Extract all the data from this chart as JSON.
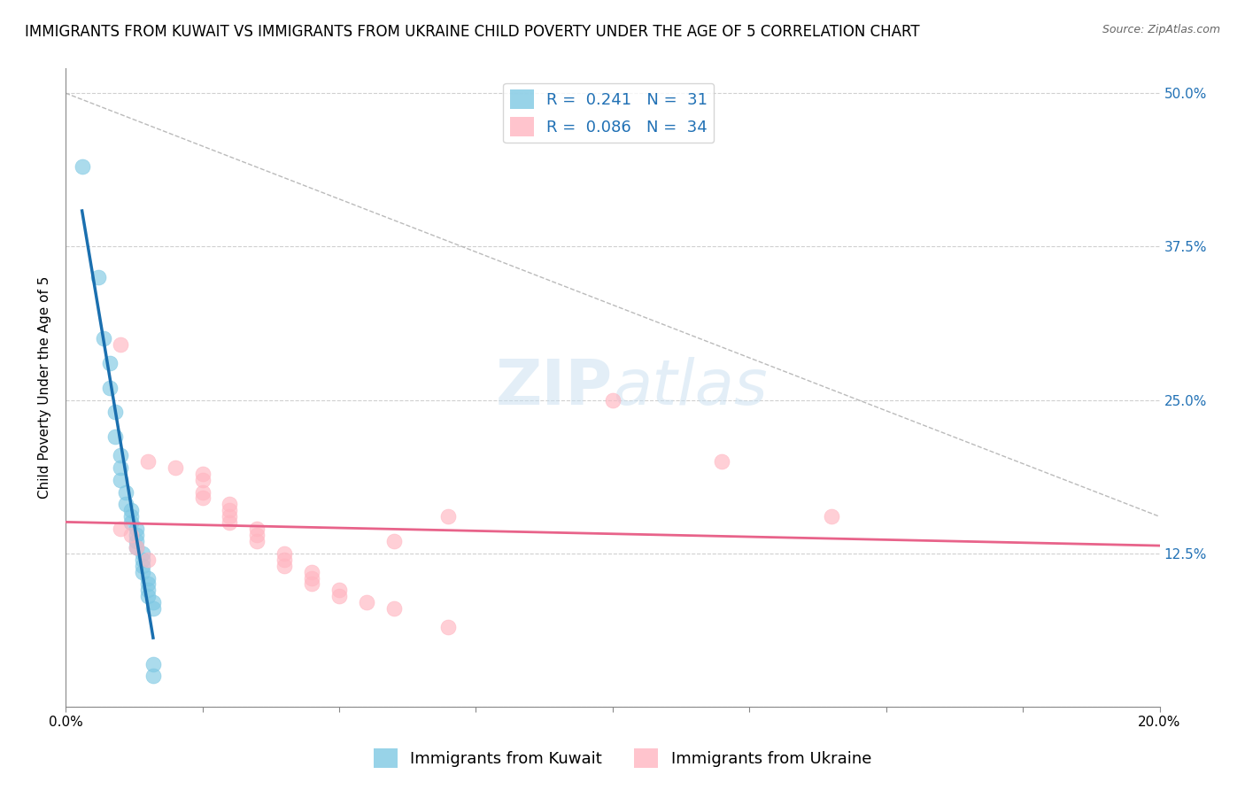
{
  "title": "IMMIGRANTS FROM KUWAIT VS IMMIGRANTS FROM UKRAINE CHILD POVERTY UNDER THE AGE OF 5 CORRELATION CHART",
  "source": "Source: ZipAtlas.com",
  "ylabel": "Child Poverty Under the Age of 5",
  "legend_labels": [
    "Immigrants from Kuwait",
    "Immigrants from Ukraine"
  ],
  "legend_r": [
    "R =  0.241",
    "R =  0.086"
  ],
  "legend_n": [
    "N =  31",
    "N =  34"
  ],
  "xlim": [
    0.0,
    0.2
  ],
  "ylim": [
    0.0,
    0.52
  ],
  "yticks": [
    0.0,
    0.125,
    0.25,
    0.375,
    0.5
  ],
  "ytick_labels": [
    "",
    "12.5%",
    "25.0%",
    "37.5%",
    "50.0%"
  ],
  "xtick_positions": [
    0.0,
    0.025,
    0.05,
    0.075,
    0.1,
    0.125,
    0.15,
    0.175,
    0.2
  ],
  "xtick_labels": [
    "0.0%",
    "",
    "",
    "",
    "",
    "",
    "",
    "",
    "20.0%"
  ],
  "color_kuwait": "#7ec8e3",
  "color_ukraine": "#ffb6c1",
  "color_kuwait_line": "#1a6faf",
  "color_ukraine_line": "#e8638a",
  "background_color": "#ffffff",
  "grid_color": "#d0d0d0",
  "kuwait_points": [
    [
      0.003,
      0.44
    ],
    [
      0.006,
      0.35
    ],
    [
      0.007,
      0.3
    ],
    [
      0.008,
      0.28
    ],
    [
      0.008,
      0.26
    ],
    [
      0.009,
      0.24
    ],
    [
      0.009,
      0.22
    ],
    [
      0.01,
      0.205
    ],
    [
      0.01,
      0.195
    ],
    [
      0.01,
      0.185
    ],
    [
      0.011,
      0.175
    ],
    [
      0.011,
      0.165
    ],
    [
      0.012,
      0.16
    ],
    [
      0.012,
      0.155
    ],
    [
      0.012,
      0.15
    ],
    [
      0.013,
      0.145
    ],
    [
      0.013,
      0.14
    ],
    [
      0.013,
      0.135
    ],
    [
      0.013,
      0.13
    ],
    [
      0.014,
      0.125
    ],
    [
      0.014,
      0.12
    ],
    [
      0.014,
      0.115
    ],
    [
      0.014,
      0.11
    ],
    [
      0.015,
      0.105
    ],
    [
      0.015,
      0.1
    ],
    [
      0.015,
      0.095
    ],
    [
      0.015,
      0.09
    ],
    [
      0.016,
      0.085
    ],
    [
      0.016,
      0.08
    ],
    [
      0.016,
      0.035
    ],
    [
      0.016,
      0.025
    ]
  ],
  "ukraine_points": [
    [
      0.01,
      0.295
    ],
    [
      0.015,
      0.2
    ],
    [
      0.02,
      0.195
    ],
    [
      0.025,
      0.19
    ],
    [
      0.025,
      0.185
    ],
    [
      0.025,
      0.175
    ],
    [
      0.025,
      0.17
    ],
    [
      0.03,
      0.165
    ],
    [
      0.03,
      0.16
    ],
    [
      0.03,
      0.155
    ],
    [
      0.03,
      0.15
    ],
    [
      0.035,
      0.145
    ],
    [
      0.035,
      0.14
    ],
    [
      0.035,
      0.135
    ],
    [
      0.04,
      0.125
    ],
    [
      0.04,
      0.12
    ],
    [
      0.04,
      0.115
    ],
    [
      0.045,
      0.11
    ],
    [
      0.045,
      0.105
    ],
    [
      0.045,
      0.1
    ],
    [
      0.05,
      0.095
    ],
    [
      0.05,
      0.09
    ],
    [
      0.055,
      0.085
    ],
    [
      0.06,
      0.08
    ],
    [
      0.01,
      0.145
    ],
    [
      0.012,
      0.14
    ],
    [
      0.013,
      0.13
    ],
    [
      0.015,
      0.12
    ],
    [
      0.07,
      0.155
    ],
    [
      0.06,
      0.135
    ],
    [
      0.1,
      0.25
    ],
    [
      0.12,
      0.2
    ],
    [
      0.14,
      0.155
    ],
    [
      0.07,
      0.065
    ]
  ],
  "diag_line_color": "#bbbbbb",
  "title_fontsize": 12,
  "axis_label_fontsize": 11,
  "tick_fontsize": 11,
  "legend_fontsize": 13
}
